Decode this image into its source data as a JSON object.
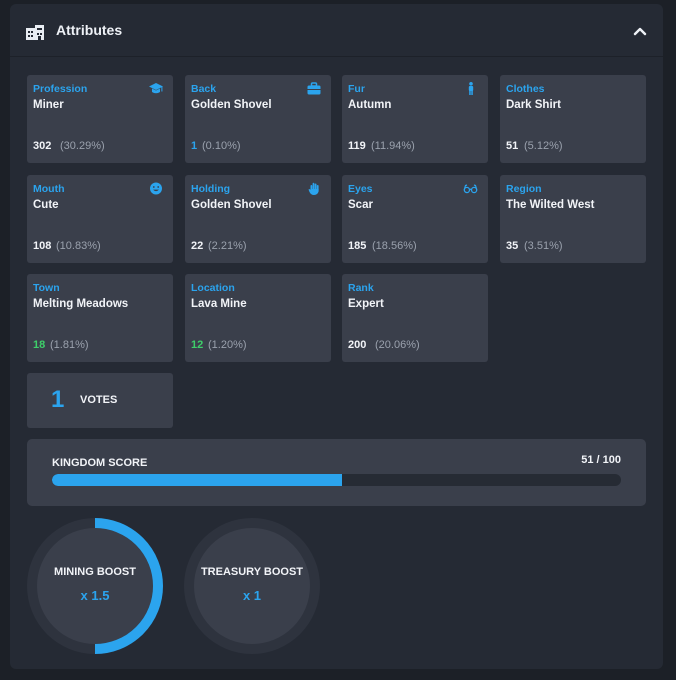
{
  "header": {
    "title": "Attributes",
    "icon": "building-icon",
    "toggle_icon": "chevron-up-icon"
  },
  "colors": {
    "accent": "#2ba4ee",
    "green": "#3ecf6a",
    "card": "#3a3f4b",
    "panel": "#252a34"
  },
  "attributes": [
    {
      "label": "Profession",
      "value": "Miner",
      "count": "302",
      "percent": "(30.29%)",
      "icon": "graduation-cap-icon",
      "count_color": "white"
    },
    {
      "label": "Back",
      "value": "Golden Shovel",
      "count": "1",
      "percent": "(0.10%)",
      "icon": "briefcase-icon",
      "count_color": "blue"
    },
    {
      "label": "Fur",
      "value": "Autumn",
      "count": "119",
      "percent": "(11.94%)",
      "icon": "person-icon",
      "count_color": "white"
    },
    {
      "label": "Clothes",
      "value": "Dark Shirt",
      "count": "51",
      "percent": "(5.12%)",
      "icon": "",
      "count_color": "white"
    },
    {
      "label": "Mouth",
      "value": "Cute",
      "count": "108",
      "percent": "(10.83%)",
      "icon": "smiley-icon",
      "count_color": "white"
    },
    {
      "label": "Holding",
      "value": "Golden Shovel",
      "count": "22",
      "percent": "(2.21%)",
      "icon": "hand-icon",
      "count_color": "white"
    },
    {
      "label": "Eyes",
      "value": "Scar",
      "count": "185",
      "percent": "(18.56%)",
      "icon": "glasses-icon",
      "count_color": "white"
    },
    {
      "label": "Region",
      "value": "The Wilted West",
      "count": "35",
      "percent": "(3.51%)",
      "icon": "",
      "count_color": "white"
    },
    {
      "label": "Town",
      "value": "Melting Meadows",
      "count": "18",
      "percent": "(1.81%)",
      "icon": "",
      "count_color": "green"
    },
    {
      "label": "Location",
      "value": "Lava Mine",
      "count": "12",
      "percent": "(1.20%)",
      "icon": "",
      "count_color": "green"
    },
    {
      "label": "Rank",
      "value": "Expert",
      "count": "200",
      "percent": "(20.06%)",
      "icon": "",
      "count_color": "white"
    }
  ],
  "votes": {
    "count": "1",
    "label": "VOTES"
  },
  "kingdom": {
    "label": "KINGDOM SCORE",
    "score_text": "51 / 100",
    "score": 51,
    "max": 100
  },
  "boosts": [
    {
      "name": "MINING BOOST",
      "value": "x 1.5",
      "ring_fraction": 0.5
    },
    {
      "name": "TREASURY BOOST",
      "value": "x 1",
      "ring_fraction": 0
    }
  ]
}
